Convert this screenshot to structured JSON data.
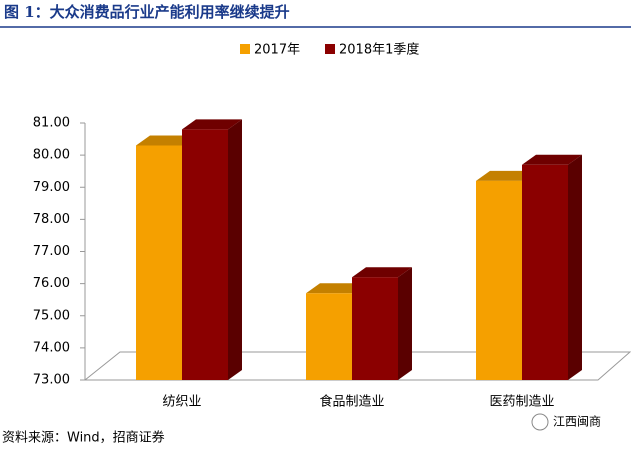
{
  "chart_data": {
    "type": "bar3d",
    "title": "图 1：大众消费品行业产能利用率继续提升",
    "categories": [
      "纺织业",
      "食品制造业",
      "医药制造业"
    ],
    "series": [
      {
        "name": "2017年",
        "color": "#f5a000",
        "values": [
          80.3,
          75.7,
          79.2
        ]
      },
      {
        "name": "2018年1季度",
        "color": "#8b0000",
        "values": [
          80.8,
          76.2,
          79.7
        ]
      }
    ],
    "ylim": [
      73,
      81
    ],
    "yticks": [
      {
        "value": 73,
        "label": "73.00"
      },
      {
        "value": 74,
        "label": "74.00"
      },
      {
        "value": 75,
        "label": "75.00"
      },
      {
        "value": 76,
        "label": "76.00"
      },
      {
        "value": 77,
        "label": "77.00"
      },
      {
        "value": 78,
        "label": "78.00"
      },
      {
        "value": 79,
        "label": "79.00"
      },
      {
        "value": 80,
        "label": "80.00"
      },
      {
        "value": 81,
        "label": "81.00"
      }
    ],
    "source": "资料来源：Wind，招商证券",
    "watermark": "江西闽商"
  }
}
